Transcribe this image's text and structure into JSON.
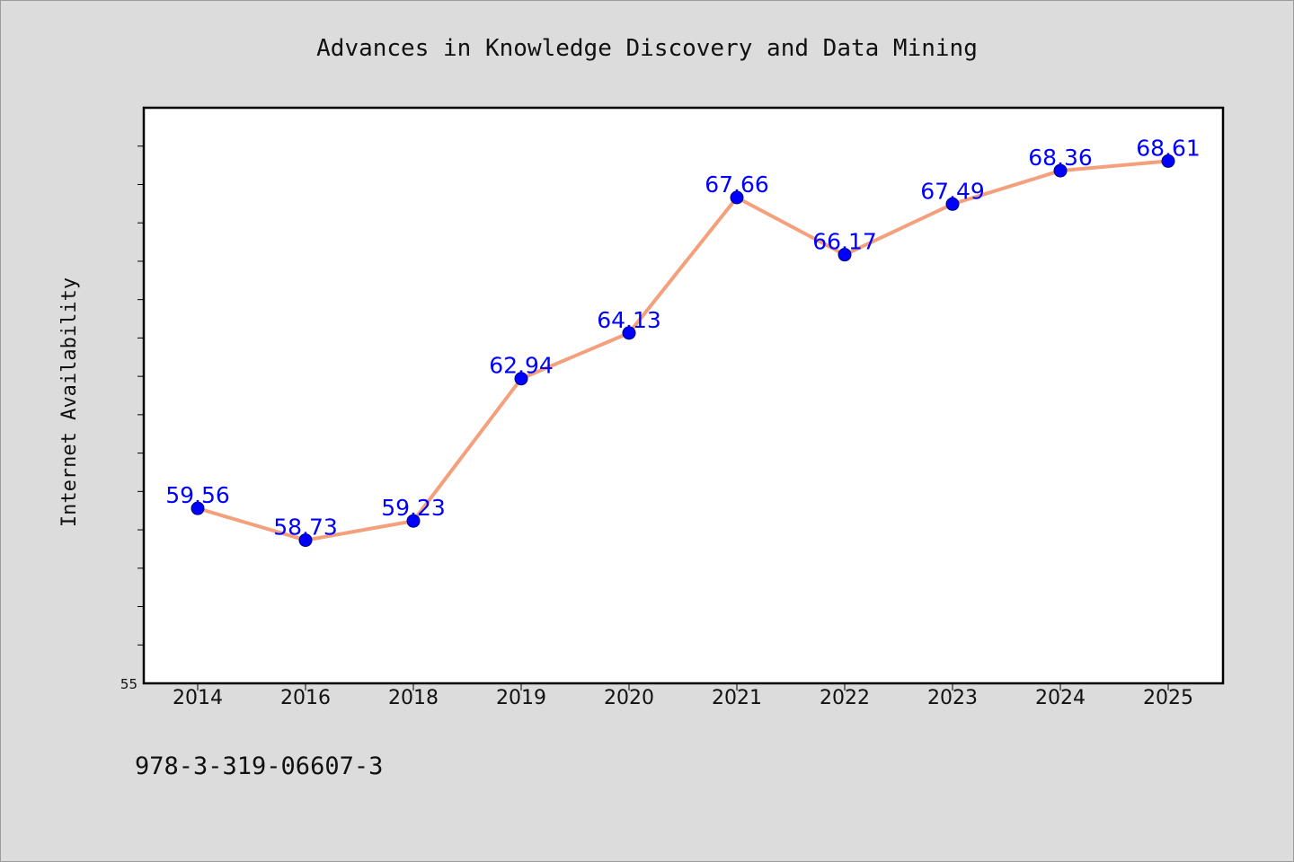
{
  "chart_data": {
    "type": "line",
    "title": "Advances in Knowledge Discovery and Data Mining",
    "xlabel": "",
    "ylabel": "Internet Availability",
    "categories": [
      "2014",
      "2016",
      "2018",
      "2019",
      "2020",
      "2021",
      "2022",
      "2023",
      "2024",
      "2025"
    ],
    "series": [
      {
        "values": [
          59.56,
          58.73,
          59.23,
          62.94,
          64.13,
          67.66,
          66.17,
          67.49,
          68.36,
          68.61
        ],
        "labels": [
          "59.56",
          "58.73",
          "59.23",
          "62.94",
          "64.13",
          "67.66",
          "66.17",
          "67.49",
          "68.36",
          "68.61"
        ],
        "line_color": "#f4a07c",
        "marker_color": "#0000ff"
      }
    ],
    "ylim": [
      55,
      70
    ],
    "yticks_labeled": [
      "55"
    ],
    "ytick_step": 1,
    "grid": false,
    "legend": "none",
    "plot_background": "#ffffff",
    "page_background": "#dcdcdc"
  },
  "footer": {
    "text": "978-3-319-06607-3"
  }
}
